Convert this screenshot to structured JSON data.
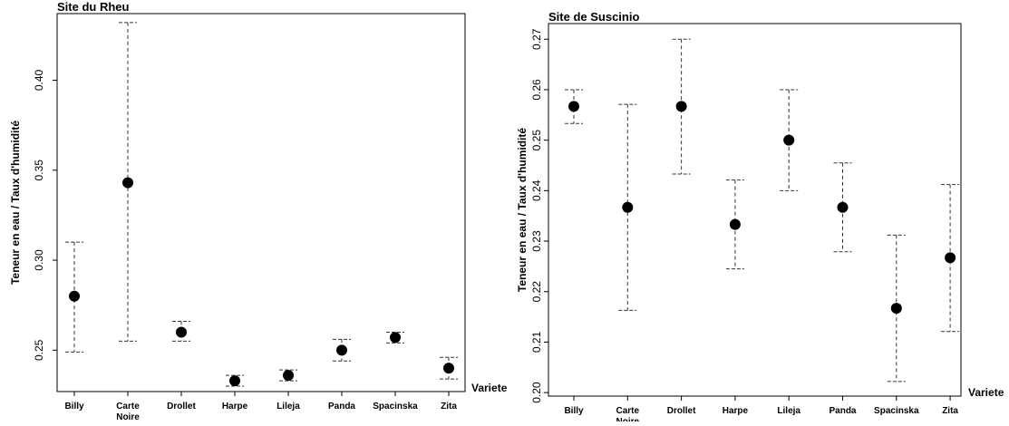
{
  "chart_data": [
    {
      "type": "scatter",
      "title": "Site du Rheu",
      "xlabel": "Variete",
      "ylabel": "Teneur en eau / Taux d'humidité",
      "categories": [
        "Billy",
        "Carte Noire",
        "Drollet",
        "Harpe",
        "Lileja",
        "Panda",
        "Spacinska",
        "Zita"
      ],
      "yticks": [
        "0.25",
        "0.30",
        "0.35",
        "0.40"
      ],
      "ylim": [
        0.227,
        0.437
      ],
      "grid": false,
      "series": [
        {
          "values": [
            0.28,
            0.343,
            0.26,
            0.233,
            0.236,
            0.25,
            0.257,
            0.24
          ],
          "lower": [
            0.249,
            0.255,
            0.255,
            0.23,
            0.233,
            0.244,
            0.254,
            0.234
          ],
          "upper": [
            0.31,
            0.432,
            0.266,
            0.236,
            0.239,
            0.256,
            0.26,
            0.246
          ]
        }
      ]
    },
    {
      "type": "scatter",
      "title": "Site de Suscinio",
      "xlabel": "Variete",
      "ylabel": "Teneur en eau / Taux d'humidité",
      "categories": [
        "Billy",
        "Carte Noire",
        "Drollet",
        "Harpe",
        "Lileja",
        "Panda",
        "Spacinska",
        "Zita"
      ],
      "yticks": [
        "0.20",
        "0.21",
        "0.22",
        "0.23",
        "0.24",
        "0.25",
        "0.26",
        "0.27"
      ],
      "ylim": [
        0.1993,
        0.2731
      ],
      "grid": false,
      "series": [
        {
          "values": [
            0.2567,
            0.2367,
            0.2567,
            0.2333,
            0.25,
            0.2367,
            0.2167,
            0.2267
          ],
          "lower": [
            0.2533,
            0.2163,
            0.2433,
            0.2245,
            0.24,
            0.2279,
            0.2022,
            0.2121
          ],
          "upper": [
            0.26,
            0.2571,
            0.27,
            0.2421,
            0.26,
            0.2455,
            0.2312,
            0.2412
          ]
        }
      ]
    }
  ]
}
